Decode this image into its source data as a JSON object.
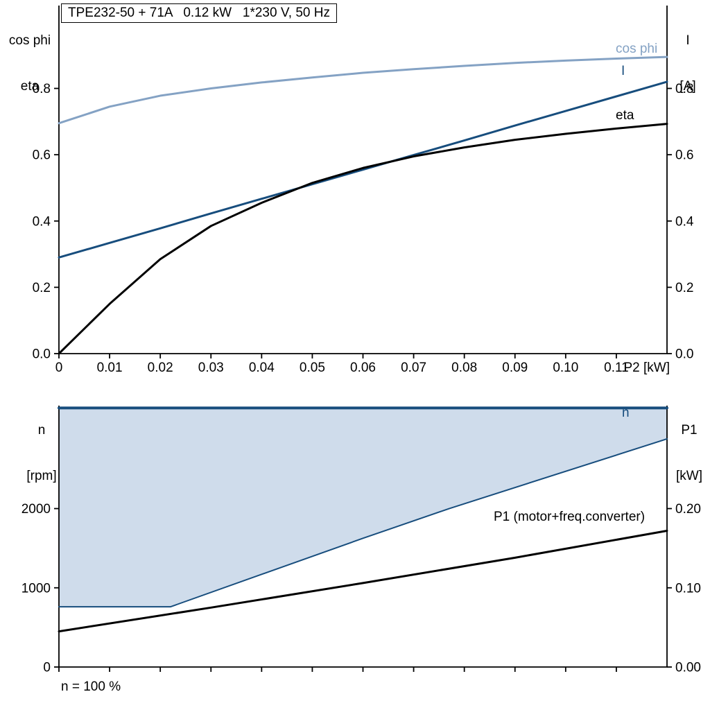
{
  "colors": {
    "dark_blue": "#174d7d",
    "light_blue": "#84a2c4",
    "black": "#000000",
    "area_fill": "#cfdceb",
    "background": "#ffffff"
  },
  "chart_data": [
    {
      "type": "line",
      "title": "TPE232-50 + 71A   0.12 kW   1*230 V, 50 Hz",
      "xlabel": "P2 [kW]",
      "ylabel_left": [
        "cos phi",
        "eta"
      ],
      "ylabel_right": [
        "I",
        "[A]"
      ],
      "xlim": [
        0,
        0.12
      ],
      "ylim": [
        0,
        1.05
      ],
      "grid": false,
      "legend_position": "right-inline",
      "x_ticks": [
        0,
        0.01,
        0.02,
        0.03,
        0.04,
        0.05,
        0.06,
        0.07,
        0.08,
        0.09,
        0.1,
        0.11
      ],
      "x_tick_labels": [
        "0",
        "0.01",
        "0.02",
        "0.03",
        "0.04",
        "0.05",
        "0.06",
        "0.07",
        "0.08",
        "0.09",
        "0.10",
        "0.11"
      ],
      "y_ticks": [
        0.0,
        0.2,
        0.4,
        0.6,
        0.8
      ],
      "y_tick_labels": [
        "0.0",
        "0.2",
        "0.4",
        "0.6",
        "0.8"
      ],
      "x": [
        0,
        0.01,
        0.02,
        0.03,
        0.04,
        0.05,
        0.06,
        0.07,
        0.08,
        0.09,
        0.1,
        0.11,
        0.12
      ],
      "series": [
        {
          "name": "cos phi",
          "color": "light_blue",
          "width": 3,
          "values": [
            0.695,
            0.745,
            0.778,
            0.8,
            0.818,
            0.833,
            0.847,
            0.858,
            0.868,
            0.877,
            0.884,
            0.89,
            0.895
          ]
        },
        {
          "name": "I",
          "color": "dark_blue",
          "width": 3,
          "values": [
            0.29,
            0.334,
            0.378,
            0.423,
            0.467,
            0.511,
            0.555,
            0.599,
            0.643,
            0.688,
            0.732,
            0.776,
            0.82
          ]
        },
        {
          "name": "eta",
          "color": "black",
          "width": 3,
          "values": [
            0.0,
            0.15,
            0.285,
            0.385,
            0.455,
            0.515,
            0.56,
            0.595,
            0.622,
            0.645,
            0.663,
            0.679,
            0.693
          ]
        }
      ]
    },
    {
      "type": "line",
      "xlabel": "",
      "ylabel_left": [
        "n",
        "[rpm]"
      ],
      "ylabel_right": [
        "P1",
        "[kW]"
      ],
      "xlim": [
        0,
        0.12
      ],
      "ylim_left": [
        0,
        3300
      ],
      "ylim_right": [
        0,
        0.33
      ],
      "grid": false,
      "annotation": "n = 100 %",
      "x_ticks": [
        0,
        0.01,
        0.02,
        0.03,
        0.04,
        0.05,
        0.06,
        0.07,
        0.08,
        0.09,
        0.1,
        0.11
      ],
      "y_ticks_left": [
        0,
        1000,
        2000
      ],
      "y_tick_labels_left": [
        "0",
        "1000",
        "2000"
      ],
      "y_ticks_right": [
        0,
        0.1,
        0.2
      ],
      "y_tick_labels_right": [
        "0.00",
        "0.10",
        "0.20"
      ],
      "series": [
        {
          "name": "n",
          "axis": "left",
          "color": "dark_blue",
          "width": 4,
          "x": [
            0,
            0.12
          ],
          "values": [
            3270,
            3270
          ]
        },
        {
          "name": "speed-range-lower-bound",
          "axis": "left",
          "color": "dark_blue",
          "width": 2,
          "x": [
            0,
            0.022,
            0.04,
            0.06,
            0.077,
            0.12
          ],
          "values": [
            760,
            760,
            1170,
            1625,
            2000,
            2880
          ]
        },
        {
          "name": "P1 (motor+freq.converter)",
          "axis": "right",
          "color": "black",
          "width": 3,
          "x": [
            0,
            0.03,
            0.06,
            0.09,
            0.12
          ],
          "values": [
            0.045,
            0.075,
            0.106,
            0.138,
            0.172
          ]
        }
      ],
      "area": {
        "fill": "area_fill",
        "upper": 0,
        "lower": 1
      }
    }
  ]
}
